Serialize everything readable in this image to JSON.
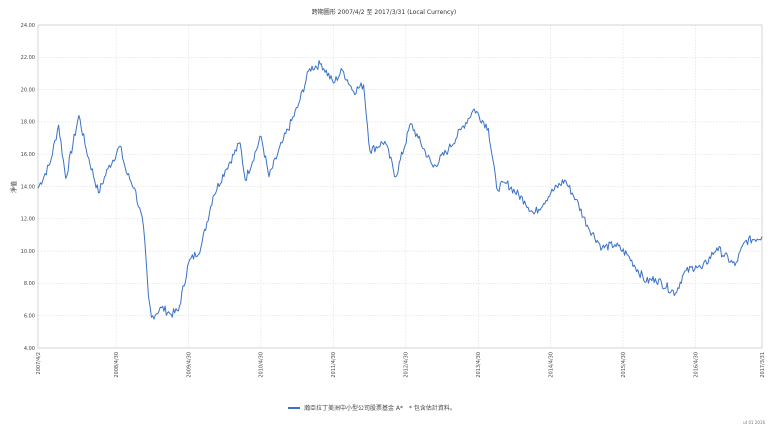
{
  "chart_data": {
    "type": "line",
    "title": "跨期圖形 2007/4/2 至 2017/3/31 (Local Currency)",
    "xlabel": "",
    "ylabel": "淨值",
    "ylim": [
      4,
      24
    ],
    "yticks": [
      "4.00",
      "6.00",
      "8.00",
      "10.00",
      "12.00",
      "14.00",
      "16.00",
      "18.00",
      "20.00",
      "22.00",
      "24.00"
    ],
    "xticks": [
      "2007/4/2",
      "2008/4/30",
      "2009/4/30",
      "2010/4/30",
      "2011/4/30",
      "2012/4/30",
      "2013/4/30",
      "2014/4/30",
      "2015/4/30",
      "2016/4/30",
      "2017/3/31"
    ],
    "grid": true,
    "legend_position": "bottom",
    "series": [
      {
        "name": "瀚亞拉丁美洲中小型公司股票基金 A*",
        "color": "#3a72c6",
        "x": [
          "2007/4/2",
          "2007/6/1",
          "2007/7/15",
          "2007/8/20",
          "2007/10/25",
          "2007/12/1",
          "2008/2/1",
          "2008/3/20",
          "2008/5/20",
          "2008/6/20",
          "2008/8/1",
          "2008/9/15",
          "2008/10/10",
          "2008/10/25",
          "2008/12/15",
          "2009/2/1",
          "2009/3/10",
          "2009/5/1",
          "2009/7/1",
          "2009/9/1",
          "2009/11/1",
          "2010/1/15",
          "2010/2/10",
          "2010/5/1",
          "2010/6/10",
          "2010/8/15",
          "2010/11/1",
          "2011/1/1",
          "2011/3/1",
          "2011/5/1",
          "2011/6/15",
          "2011/8/10",
          "2011/9/30",
          "2011/11/1",
          "2012/1/15",
          "2012/3/10",
          "2012/5/25",
          "2012/7/1",
          "2012/9/15",
          "2012/12/1",
          "2013/2/1",
          "2013/4/10",
          "2013/6/20",
          "2013/8/1",
          "2013/9/20",
          "2013/12/20",
          "2014/2/5",
          "2014/5/1",
          "2014/7/10",
          "2014/9/5",
          "2014/11/1",
          "2015/1/15",
          "2015/3/20",
          "2015/5/20",
          "2015/8/25",
          "2015/10/10",
          "2016/1/20",
          "2016/3/1",
          "2016/5/1",
          "2016/6/1",
          "2016/8/15",
          "2016/11/15",
          "2017/1/5",
          "2017/3/31"
        ],
        "values": [
          13.9,
          15.4,
          17.8,
          14.5,
          18.4,
          16.3,
          13.6,
          15.1,
          16.5,
          14.9,
          13.9,
          11.5,
          7.2,
          5.9,
          6.5,
          6.1,
          6.3,
          9.3,
          10.2,
          13.4,
          15.0,
          16.7,
          14.4,
          17.1,
          14.6,
          16.7,
          18.9,
          21.3,
          21.6,
          20.4,
          21.2,
          19.9,
          20.3,
          16.2,
          16.8,
          14.6,
          17.9,
          17.0,
          15.2,
          16.3,
          17.5,
          18.8,
          17.6,
          13.9,
          14.2,
          13.1,
          12.3,
          13.6,
          14.4,
          13.2,
          11.6,
          10.2,
          10.4,
          9.8,
          8.1,
          8.3,
          7.4,
          8.6,
          9.1,
          8.9,
          10.2,
          9.1,
          10.6,
          10.9
        ]
      }
    ],
    "legend_note": "* 包含估計資料。",
    "footer": "ut 01  2016"
  }
}
